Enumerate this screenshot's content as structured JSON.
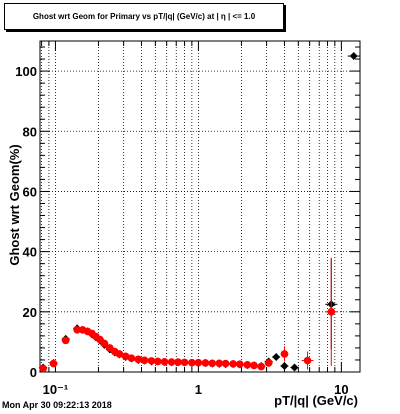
{
  "title": "Ghost wrt Geom for Primary vs pT/|q| (GeV/c) at | η | <= 1.0",
  "timestamp": "Mon Apr 30 09:22:13 2018",
  "chart_data": {
    "type": "scatter",
    "title": "Ghost wrt Geom for Primary vs pT/|q| (GeV/c) at | η | <= 1.0",
    "xlabel": "pT/|q| (GeV/c)",
    "ylabel": "Ghost wrt Geom(%)",
    "x_scale": "log",
    "xlim": [
      0.078,
      13.5
    ],
    "ylim": [
      0,
      110
    ],
    "grid": true,
    "x_ticks": [
      {
        "value": 0.1,
        "label": "10⁻¹"
      },
      {
        "value": 1,
        "label": "1"
      },
      {
        "value": 10,
        "label": "10"
      }
    ],
    "y_ticks": [
      0,
      20,
      40,
      60,
      80,
      100
    ],
    "series": [
      {
        "color": "#000000",
        "marker": "diamond",
        "points": [
          [
            0.082,
            1.5,
            0.5
          ],
          [
            0.097,
            3.0,
            0.5
          ],
          [
            0.118,
            11.0,
            0.8
          ],
          [
            0.142,
            14.5,
            0.8
          ],
          [
            0.155,
            14.0,
            0.8
          ],
          [
            0.168,
            13.5,
            0.8
          ],
          [
            0.18,
            12.5,
            0.8
          ],
          [
            0.192,
            11.5,
            0.8
          ],
          [
            0.205,
            10.5,
            0.7
          ],
          [
            0.22,
            9.0,
            0.7
          ],
          [
            0.24,
            7.5,
            0.6
          ],
          [
            0.26,
            6.5,
            0.6
          ],
          [
            0.28,
            5.8,
            0.5
          ],
          [
            0.31,
            5.0,
            0.5
          ],
          [
            0.34,
            4.5,
            0.5
          ],
          [
            0.38,
            4.0,
            0.5
          ],
          [
            0.42,
            3.8,
            0.5
          ],
          [
            0.47,
            3.5,
            0.5
          ],
          [
            0.52,
            3.5,
            0.5
          ],
          [
            0.58,
            3.3,
            0.5
          ],
          [
            0.65,
            3.3,
            0.5
          ],
          [
            0.72,
            3.2,
            0.5
          ],
          [
            0.8,
            3.2,
            0.5
          ],
          [
            0.9,
            3.0,
            0.5
          ],
          [
            1.0,
            3.0,
            0.5
          ],
          [
            1.12,
            3.0,
            0.5
          ],
          [
            1.25,
            2.8,
            0.5
          ],
          [
            1.4,
            2.7,
            0.5
          ],
          [
            1.55,
            2.6,
            0.5
          ],
          [
            1.75,
            2.6,
            0.5
          ],
          [
            1.95,
            2.5,
            0.5
          ],
          [
            2.2,
            2.3,
            0.5
          ],
          [
            2.45,
            2.2,
            0.5
          ],
          [
            2.75,
            2.0,
            0.6
          ],
          [
            3.1,
            3.5,
            0.8
          ],
          [
            3.5,
            5.0,
            1.0
          ],
          [
            4.0,
            2.0,
            1.0
          ],
          [
            4.7,
            1.5,
            1.0
          ],
          [
            8.5,
            22.5,
            15.0
          ],
          [
            12.2,
            105.0,
            0
          ]
        ]
      },
      {
        "color": "#ff0000",
        "marker": "circle",
        "points": [
          [
            0.082,
            1.2,
            0.5
          ],
          [
            0.097,
            2.8,
            0.5
          ],
          [
            0.118,
            10.5,
            0.8
          ],
          [
            0.142,
            14.0,
            0.8
          ],
          [
            0.155,
            14.0,
            0.8
          ],
          [
            0.168,
            13.5,
            0.8
          ],
          [
            0.18,
            12.8,
            0.8
          ],
          [
            0.192,
            11.8,
            0.8
          ],
          [
            0.205,
            10.8,
            0.7
          ],
          [
            0.22,
            9.5,
            0.7
          ],
          [
            0.24,
            8.0,
            0.6
          ],
          [
            0.26,
            6.8,
            0.6
          ],
          [
            0.28,
            6.0,
            0.5
          ],
          [
            0.31,
            5.2,
            0.5
          ],
          [
            0.34,
            4.6,
            0.5
          ],
          [
            0.38,
            4.2,
            0.5
          ],
          [
            0.42,
            3.9,
            0.5
          ],
          [
            0.47,
            3.7,
            0.5
          ],
          [
            0.52,
            3.5,
            0.5
          ],
          [
            0.58,
            3.4,
            0.5
          ],
          [
            0.65,
            3.3,
            0.5
          ],
          [
            0.72,
            3.3,
            0.5
          ],
          [
            0.8,
            3.2,
            0.5
          ],
          [
            0.9,
            3.1,
            0.5
          ],
          [
            1.0,
            3.1,
            0.5
          ],
          [
            1.12,
            3.0,
            0.5
          ],
          [
            1.25,
            2.9,
            0.5
          ],
          [
            1.4,
            2.9,
            0.5
          ],
          [
            1.55,
            2.8,
            0.5
          ],
          [
            1.75,
            2.7,
            0.5
          ],
          [
            1.95,
            2.6,
            0.5
          ],
          [
            2.2,
            2.4,
            0.5
          ],
          [
            2.45,
            2.2,
            0.5
          ],
          [
            2.75,
            1.8,
            0.6
          ],
          [
            3.1,
            3.0,
            1.0
          ],
          [
            4.0,
            6.0,
            2.5
          ],
          [
            5.8,
            3.8,
            3.0
          ],
          [
            8.5,
            20.0,
            18.0
          ]
        ]
      }
    ]
  }
}
